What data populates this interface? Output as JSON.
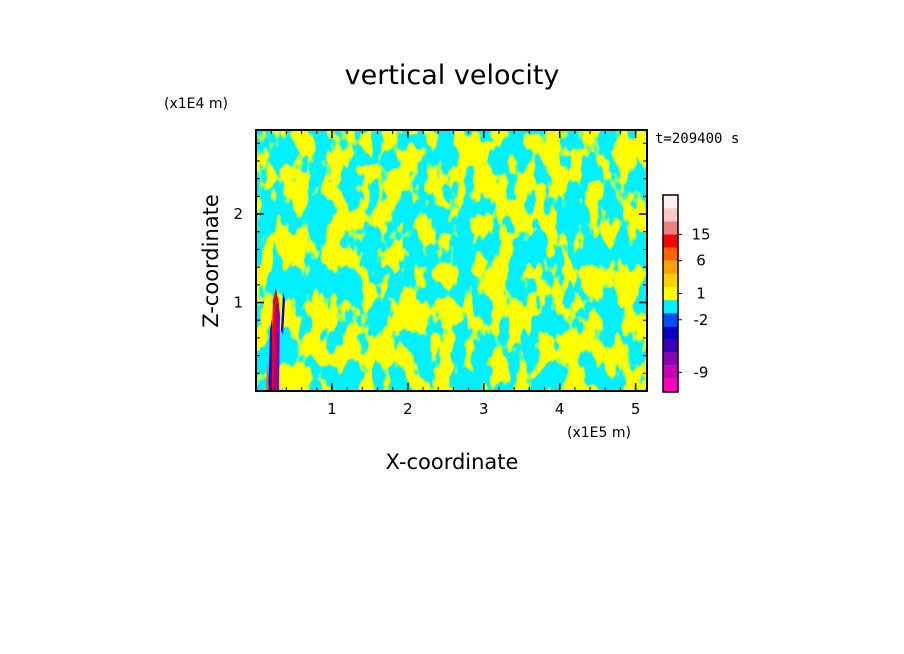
{
  "chart_data": {
    "type": "heatmap",
    "title": "vertical velocity",
    "xlabel": "X-coordinate",
    "ylabel": "Z-coordinate",
    "x_scale_label": "(x1E5 m)",
    "y_scale_label": "(x1E4 m)",
    "time_label": "t=209400 s",
    "xlim": [
      0,
      5.15
    ],
    "ylim": [
      0,
      2.95
    ],
    "x_ticks": [
      "1",
      "2",
      "3",
      "4",
      "5"
    ],
    "x_tick_values": [
      1,
      2,
      3,
      4,
      5
    ],
    "y_ticks": [
      "1",
      "2"
    ],
    "y_tick_values": [
      1,
      2
    ],
    "colorbar": {
      "tick_labels": [
        "15",
        "6",
        "1",
        "-2",
        "-9"
      ],
      "tick_values": [
        15,
        6,
        1,
        -2,
        -9
      ],
      "bins": [
        {
          "color": "#ff00b4"
        },
        {
          "color": "#c800b4"
        },
        {
          "color": "#8c00b4"
        },
        {
          "color": "#3c00b4"
        },
        {
          "color": "#0000c8"
        },
        {
          "color": "#0050ff"
        },
        {
          "color": "#00f0ff"
        },
        {
          "color": "#ffff00"
        },
        {
          "color": "#ffd200"
        },
        {
          "color": "#ffa000"
        },
        {
          "color": "#ff6400"
        },
        {
          "color": "#ff0000"
        },
        {
          "color": "#f08080"
        },
        {
          "color": "#ffc8c8"
        },
        {
          "color": "#fff0f0"
        }
      ]
    },
    "dominant_colors": {
      "positive": "#ffff00",
      "negative": "#00f0ff"
    }
  }
}
